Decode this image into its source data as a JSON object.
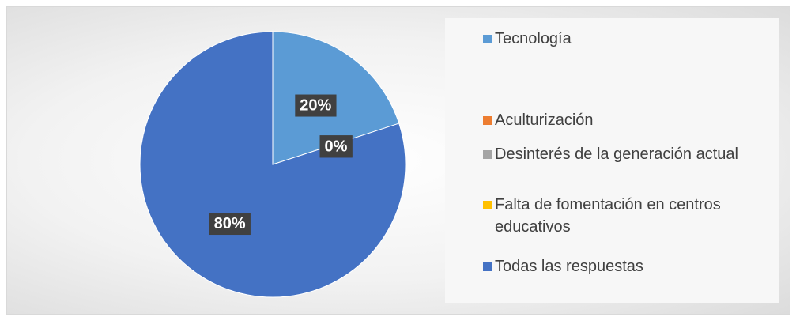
{
  "chart_data": {
    "type": "pie",
    "categories": [
      "Tecnología",
      "Aculturización",
      "Desinterés de la generación actual",
      "Falta de fomentación en centros educativos",
      "Todas las respuestas"
    ],
    "values": [
      20,
      0,
      0,
      0,
      80
    ],
    "value_labels": [
      "20%",
      "0%",
      "0%",
      "0%",
      "80%"
    ],
    "colors": [
      "#5b9bd5",
      "#ed7d31",
      "#a5a5a5",
      "#ffc000",
      "#4472c4"
    ],
    "legend": "right"
  }
}
